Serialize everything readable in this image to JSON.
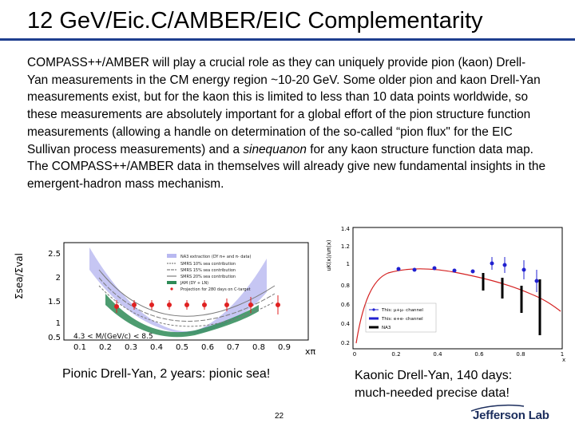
{
  "title": "12 GeV/Eic.C/AMBER/EIC Complementarity",
  "body": {
    "part1": "COMPASS++/AMBER will play a crucial role as they can uniquely provide pion (kaon) Drell-Yan measurements in the CM energy region ~10-20 GeV. Some older pion and kaon Drell-Yan measurements exist, but for the kaon this is limited to less than 10 data points worldwide, so these measurements are absolutely important for a global effort of the pion structure function measurements (allowing a handle on determination of the so-called “pion flux\" for the EIC Sullivan process measurements) and a ",
    "emphasis": "sinequanon",
    "part2": " for any kaon structure function data map. The COMPASS++/AMBER data in themselves will already give new fundamental insights in the emergent-hadron mass mechanism."
  },
  "left_plot": {
    "y_label": "Σsea/Σval",
    "x_label": "xπ",
    "y_ticks": [
      "2.5",
      "2",
      "1.5",
      "1",
      "0.5"
    ],
    "x_ticks": [
      "0.1",
      "0.2",
      "0.3",
      "0.4",
      "0.5",
      "0.6",
      "0.7",
      "0.8",
      "0.9"
    ],
    "annotation": "4.3 < M/(GeV/c) < 8.5",
    "legend": [
      "NA3 extraction (DY π+ and π- data)",
      "SMRS 10% sea contribution",
      "SMRS 15% sea contribution",
      "SMRS 20% sea contribution",
      "JAM (DY + LN)",
      "Projection for 280 days on C-target"
    ],
    "colors": {
      "band_blue": "#b8b8f0",
      "band_green": "#2e8b57",
      "points": "#e02020"
    }
  },
  "right_plot": {
    "y_label": "uK(x)/uπ(x)",
    "x_label": "x",
    "y_ticks": [
      "1.4",
      "1.2",
      "1",
      "0.8",
      "0.6",
      "0.4",
      "0.2"
    ],
    "x_ticks": [
      "0",
      "0.2",
      "0.4",
      "0.6",
      "0.8",
      "1"
    ],
    "legend": [
      "This: μ+μ- channel",
      "This: e+e- channel",
      "NA3"
    ],
    "colors": {
      "curve": "#d42020",
      "blue": "#2020d0",
      "black": "#000000"
    }
  },
  "captions": {
    "left": "Pionic Drell-Yan, 2 years: pionic sea!",
    "right_line1": "Kaonic Drell-Yan, 140 days:",
    "right_line2": "much-needed precise data!"
  },
  "footer": {
    "page_number": "22",
    "logo": "Jefferson Lab"
  }
}
